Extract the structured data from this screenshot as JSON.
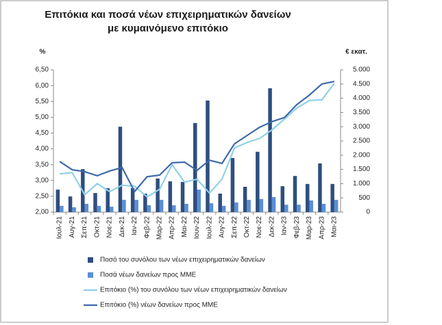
{
  "chart_data": {
    "type": "bar",
    "title": "Επιτόκια και ποσά νέων επιχειρηματικών δανείων με κυμαινόμενο επιτόκιο",
    "y_label": "%",
    "y2_label": "€ εκατ.",
    "categories": [
      "Ιουλ-21",
      "Αυγ-21",
      "Σεπ-21",
      "Οκτ-21",
      "Νοε-21",
      "Δεκ-21",
      "Ιαν-22",
      "Φεβ-22",
      "Μαρ-22",
      "Απρ-22",
      "Μαι-22",
      "Ιουν-22",
      "Ιουλ-22",
      "Αυγ-22",
      "Σεπ-22",
      "Οκτ-22",
      "Νοε-22",
      "Δεκ-22",
      "Ιαν-23",
      "Φεβ-23",
      "Μαρ-23",
      "Απρ-23",
      "Μαι-23"
    ],
    "series": [
      {
        "name": "Ποσό του συνόλου των νέων επιχειρηματικών δανείων",
        "type": "bar",
        "axis": "y2",
        "color": "#2e4f7f",
        "values": [
          790,
          550,
          1510,
          670,
          840,
          3000,
          840,
          650,
          1180,
          1080,
          1060,
          3130,
          3920,
          650,
          1900,
          890,
          2120,
          4350,
          910,
          1270,
          990,
          1710,
          990
        ]
      },
      {
        "name": "Ποσά νέων δανείων προς ΜΜΕ",
        "type": "bar",
        "axis": "y2",
        "color": "#5b8fd6",
        "values": [
          220,
          170,
          290,
          220,
          190,
          430,
          430,
          240,
          430,
          240,
          290,
          790,
          310,
          220,
          340,
          430,
          460,
          530,
          260,
          260,
          410,
          290,
          430
        ]
      },
      {
        "name": "Επιτόκιο (%) του συνόλου των νέων επιχειρηματικών δανείων",
        "type": "line",
        "color": "#8fd0e8",
        "values": [
          3.21,
          3.25,
          2.55,
          2.9,
          2.65,
          2.85,
          2.82,
          2.48,
          2.72,
          3.5,
          2.95,
          3.04,
          2.6,
          3.04,
          4.03,
          4.2,
          4.33,
          4.6,
          4.94,
          5.29,
          5.53,
          5.55,
          6.07
        ]
      },
      {
        "name": "Επιτόκιο (%) νέων δανείων προς ΜΜΕ",
        "type": "line",
        "color": "#3d6aa8",
        "values": [
          3.6,
          3.34,
          3.28,
          3.15,
          3.3,
          3.41,
          2.65,
          3.12,
          3.17,
          3.56,
          3.58,
          3.32,
          3.64,
          3.54,
          4.16,
          4.42,
          4.68,
          4.86,
          4.99,
          5.4,
          5.7,
          6.05,
          6.13
        ]
      }
    ],
    "ylim": [
      2,
      6.5
    ],
    "yticks": [
      {
        "value": 2,
        "label": "2,00"
      },
      {
        "value": 2.5,
        "label": "2,50"
      },
      {
        "value": 3,
        "label": "3,00"
      },
      {
        "value": 3.5,
        "label": "3,50"
      },
      {
        "value": 4,
        "label": "4,00"
      },
      {
        "value": 4.5,
        "label": "4,50"
      },
      {
        "value": 5,
        "label": "5,00"
      },
      {
        "value": 5.5,
        "label": "5,50"
      },
      {
        "value": 6,
        "label": "6,00"
      },
      {
        "value": 6.5,
        "label": "6,50"
      }
    ],
    "y2lim": [
      0,
      5000
    ],
    "y2ticks": [
      0,
      500,
      {
        "value": 1000,
        "label": "1.000"
      },
      {
        "value": 1500,
        "label": "1.500"
      },
      {
        "value": 2000,
        "label": "2.000"
      },
      {
        "value": 2500,
        "label": "2.500"
      },
      {
        "value": 3000,
        "label": "3.000"
      },
      {
        "value": 3500,
        "label": "3.500"
      },
      {
        "value": 4000,
        "label": "4.000"
      },
      {
        "value": 4500,
        "label": "4.500"
      },
      {
        "value": 5000,
        "label": "5.000"
      }
    ],
    "legend": "bottom",
    "grid": false
  }
}
